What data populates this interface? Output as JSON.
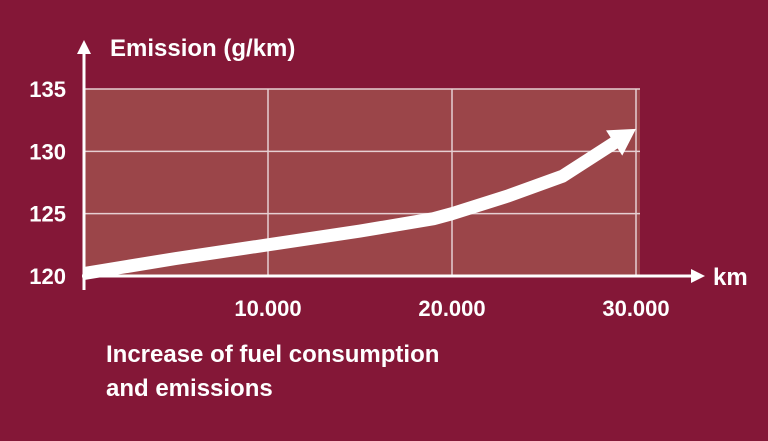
{
  "chart_data": {
    "type": "line",
    "ylabel": "Emission (g/km)",
    "xlabel": "km",
    "ylim": [
      120,
      135
    ],
    "xlim": [
      0,
      30000
    ],
    "yticks": [
      {
        "value": 120,
        "label": "120"
      },
      {
        "value": 125,
        "label": "125"
      },
      {
        "value": 130,
        "label": "130"
      },
      {
        "value": 135,
        "label": "135"
      }
    ],
    "xticks": [
      {
        "value": 10000,
        "label": "10.000"
      },
      {
        "value": 20000,
        "label": "20.000"
      },
      {
        "value": 30000,
        "label": "30.000"
      }
    ],
    "series": [
      {
        "x": [
          0,
          5000,
          10000,
          15000,
          19000,
          20000,
          23000,
          26000,
          30000
        ],
        "y": [
          120.2,
          121.4,
          122.5,
          123.6,
          124.6,
          125.0,
          126.4,
          128.0,
          131.8
        ]
      }
    ],
    "grid": true
  },
  "caption": {
    "line1": "Increase of fuel consumption",
    "line2": "and emissions"
  },
  "colors": {
    "background": "#841737",
    "plot_area": "#9b4549",
    "grid": "#e6cfd2",
    "line": "#ffffff"
  }
}
